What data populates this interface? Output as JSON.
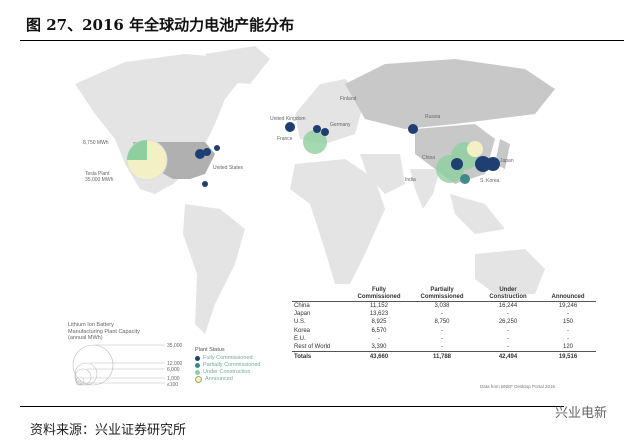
{
  "title": "图 27、2016 年全球动力电池产能分布",
  "source": "资料来源：兴业证券研究所",
  "watermark": "兴业电新",
  "map": {
    "labels": {
      "uk": "United Kingdom",
      "france": "France",
      "germany": "Germany",
      "finland": "Finland",
      "russia": "Russia",
      "china": "China",
      "india": "India",
      "japan": "Japan",
      "korea": "S. Korea",
      "us": "United States",
      "pie_small": "8,750 MWh",
      "pie_big_1": "Tesla Plant",
      "pie_big_2": "35,000 MWh"
    }
  },
  "capacity_legend": {
    "title": "Lithium Ion Battery Manufacturing Plant Capacity (annual MWh)",
    "sizes": [
      "35,000",
      "12,000",
      "6,000",
      "1,000",
      "≤100"
    ]
  },
  "status_legend": {
    "title": "Plant Status",
    "items": [
      {
        "label": "Fully Commissioned",
        "color": "#1f3f73"
      },
      {
        "label": "Partially Commissioned",
        "color": "#3f8a8a"
      },
      {
        "label": "Under Construction",
        "color": "#8fcf9f"
      },
      {
        "label": "Announced",
        "color": "#f3f0c6"
      }
    ]
  },
  "table": {
    "headers": [
      "",
      "Fully Commissioned",
      "Partially Commissioned",
      "Under Construction",
      "Announced"
    ],
    "rows": [
      [
        "China",
        "11,152",
        "3,038",
        "16,244",
        "19,246"
      ],
      [
        "Japan",
        "13,623",
        "-",
        "-",
        "-"
      ],
      [
        "U.S.",
        "8,925",
        "8,750",
        "26,250",
        "150"
      ],
      [
        "Korea",
        "6,570",
        "-",
        "-",
        "-"
      ],
      [
        "E.U.",
        "-",
        "-",
        "-",
        "-"
      ],
      [
        "Rest of World",
        "3,390",
        "-",
        "-",
        "120"
      ]
    ],
    "totals": [
      "Totals",
      "43,660",
      "11,788",
      "42,494",
      "19,516"
    ]
  },
  "credit": "Data from BNEF Desktop Portal 2016"
}
